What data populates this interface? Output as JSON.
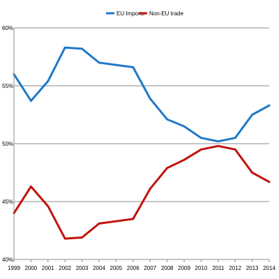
{
  "chart_data": {
    "type": "line",
    "title": "",
    "xlabel": "",
    "ylabel": "",
    "x": [
      "1999",
      "2000",
      "2001",
      "2002",
      "2003",
      "2004",
      "2005",
      "2006",
      "2007",
      "2008",
      "2009",
      "2010",
      "2011",
      "2012",
      "2013",
      "2014"
    ],
    "ylim": [
      0.4,
      0.6
    ],
    "y_ticks": [
      {
        "value": 0.6,
        "label": "60%"
      },
      {
        "value": 0.55,
        "label": "55%"
      },
      {
        "value": 0.5,
        "label": "50%"
      },
      {
        "value": 0.45,
        "label": "45%"
      },
      {
        "value": 0.4,
        "label": "40%"
      }
    ],
    "grid": true,
    "legend_position": "top-center",
    "series": [
      {
        "name": "EU Imports",
        "color": "#1f78c8",
        "values": [
          0.56,
          0.537,
          0.554,
          0.583,
          0.582,
          0.57,
          0.568,
          0.566,
          0.539,
          0.521,
          0.515,
          0.505,
          0.502,
          0.505,
          0.525,
          0.533
        ]
      },
      {
        "name": "Non-EU trade",
        "color": "#c0120c",
        "values": [
          0.44,
          0.463,
          0.446,
          0.418,
          0.419,
          0.431,
          0.433,
          0.435,
          0.461,
          0.479,
          0.486,
          0.495,
          0.498,
          0.495,
          0.475,
          0.467
        ]
      }
    ]
  }
}
